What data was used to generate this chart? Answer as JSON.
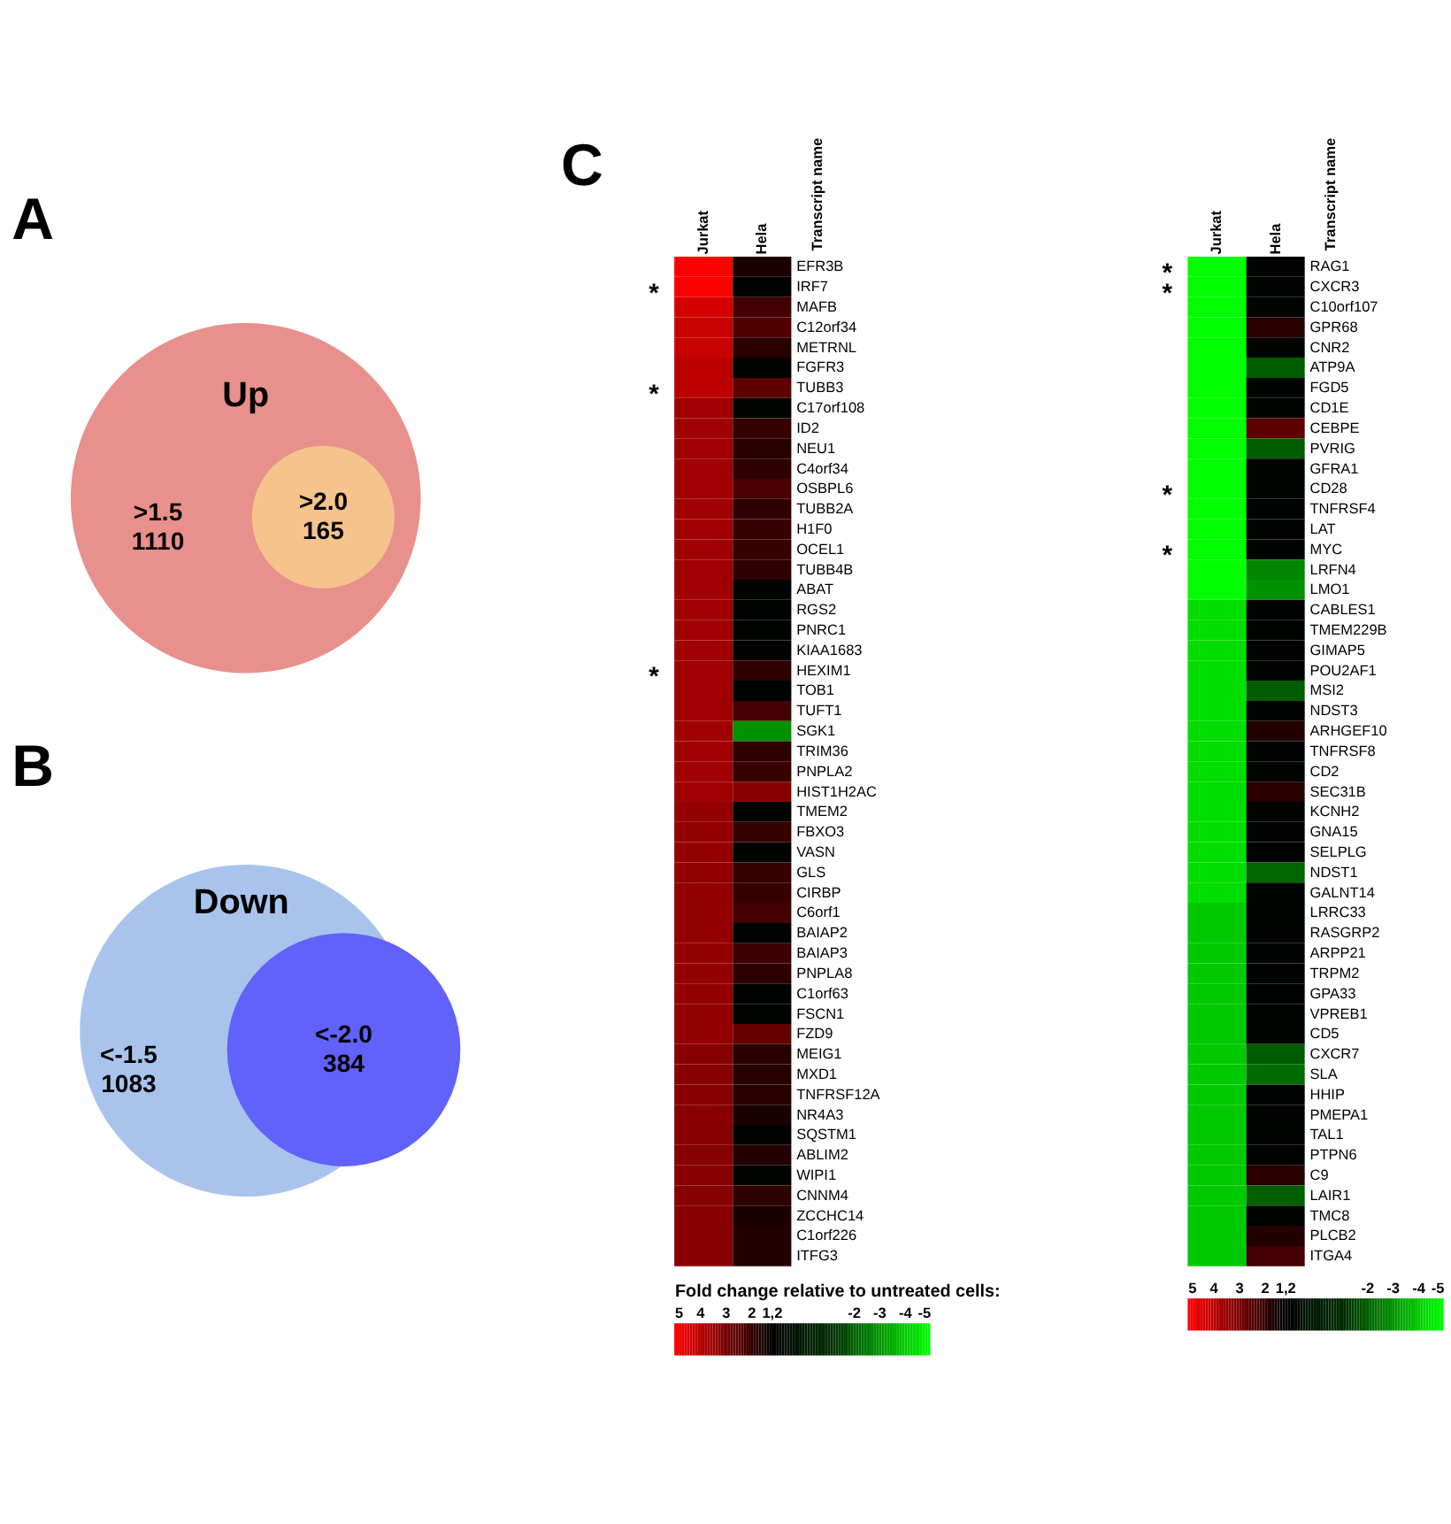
{
  "chart_data": [
    {
      "type": "other",
      "title": "A",
      "annotations": [
        "Up"
      ],
      "categories": [
        ">1.5",
        ">2.0"
      ],
      "values": [
        1110,
        165
      ],
      "colors": [
        "#e8908c",
        "#f6c38c"
      ],
      "data_labels": true
    },
    {
      "type": "other",
      "title": "B",
      "annotations": [
        "Down"
      ],
      "categories": [
        "<-1.5",
        "<-2.0"
      ],
      "values": [
        1083,
        384
      ],
      "colors": [
        "#a9c4ec",
        "#6161fb"
      ],
      "data_labels": true
    },
    {
      "type": "heatmap",
      "title": "C",
      "categories": [
        "Jurkat",
        "Hela"
      ],
      "y2label": "Transcript name",
      "clabel": "Fold change relative to untreated cells:",
      "clim": [
        5,
        -5
      ],
      "cticks": [
        5,
        4,
        3,
        2,
        {
          "value": 1.2,
          "label": "1,2"
        },
        -2,
        -3,
        -4,
        -5
      ],
      "y_categories": [
        null,
        "*",
        null,
        null,
        null,
        null,
        "*",
        null,
        null,
        null,
        null,
        null,
        null,
        null,
        null,
        null,
        null,
        null,
        null,
        null,
        "*",
        null,
        null,
        null,
        null,
        null,
        null,
        null,
        null,
        null,
        null,
        null,
        null,
        null,
        null,
        null,
        null,
        null,
        null,
        null,
        null,
        null,
        null,
        null,
        null,
        null,
        null,
        null,
        null,
        null
      ],
      "y2_categories": [
        "EFR3B",
        "IRF7",
        "MAFB",
        "C12orf34",
        "METRNL",
        "FGFR3",
        "TUBB3",
        "C17orf108",
        "ID2",
        "NEU1",
        "C4orf34",
        "OSBPL6",
        "TUBB2A",
        "H1F0",
        "OCEL1",
        "TUBB4B",
        "ABAT",
        "RGS2",
        "PNRC1",
        "KIAA1683",
        "HEXIM1",
        "TOB1",
        "TUFT1",
        "SGK1",
        "TRIM36",
        "PNPLA2",
        "HIST1H2AC",
        "TMEM2",
        "FBXO3",
        "VASN",
        "GLS",
        "CIRBP",
        "C6orf1",
        "BAIAP2",
        "BAIAP3",
        "PNPLA8",
        "C1orf63",
        "FSCN1",
        "FZD9",
        "MEIG1",
        "MXD1",
        "TNFRSF12A",
        "NR4A3",
        "SQSTM1",
        "ABLIM2",
        "WIPI1",
        "CNNM4",
        "ZCCHC14",
        "C1orf226",
        "ITFG3"
      ],
      "cells": [
        [
          5,
          1.6
        ],
        [
          5,
          1
        ],
        [
          4.4,
          2.2
        ],
        [
          4.2,
          2.4
        ],
        [
          4.2,
          1.8
        ],
        [
          4,
          1
        ],
        [
          4,
          2.6
        ],
        [
          3.6,
          1
        ],
        [
          3.6,
          2
        ],
        [
          3.6,
          1.8
        ],
        [
          3.6,
          1.9
        ],
        [
          3.6,
          2.3
        ],
        [
          3.6,
          1.9
        ],
        [
          3.6,
          2
        ],
        [
          3.6,
          2
        ],
        [
          3.6,
          1.9
        ],
        [
          3.6,
          1
        ],
        [
          3.6,
          1
        ],
        [
          3.6,
          1
        ],
        [
          3.6,
          1
        ],
        [
          3.6,
          1.9
        ],
        [
          3.6,
          1
        ],
        [
          3.6,
          2.2
        ],
        [
          3.6,
          -3
        ],
        [
          3.6,
          1.9
        ],
        [
          3.6,
          2
        ],
        [
          3.6,
          3.2
        ],
        [
          3.4,
          1
        ],
        [
          3.4,
          2
        ],
        [
          3.4,
          1
        ],
        [
          3.4,
          2
        ],
        [
          3.4,
          2
        ],
        [
          3.4,
          2.2
        ],
        [
          3.4,
          1
        ],
        [
          3.4,
          2.1
        ],
        [
          3.4,
          1.9
        ],
        [
          3.4,
          1
        ],
        [
          3.4,
          1
        ],
        [
          3.4,
          2.7
        ],
        [
          3.2,
          1.8
        ],
        [
          3.2,
          1.8
        ],
        [
          3.2,
          1.8
        ],
        [
          3.2,
          1.6
        ],
        [
          3.2,
          1
        ],
        [
          3.2,
          1.7
        ],
        [
          3.2,
          1
        ],
        [
          3.2,
          1.9
        ],
        [
          3.2,
          1.6
        ],
        [
          3.2,
          1.7
        ],
        [
          3.2,
          1.7
        ]
      ]
    },
    {
      "type": "heatmap",
      "categories": [
        "Jurkat",
        "Hela"
      ],
      "y2label": "Transcript name",
      "clim": [
        5,
        -5
      ],
      "cticks": [
        5,
        4,
        3,
        2,
        {
          "value": 1.2,
          "label": "1,2"
        },
        -2,
        -3,
        -4,
        -5
      ],
      "y_categories": [
        "*",
        "*",
        null,
        null,
        null,
        null,
        null,
        null,
        null,
        null,
        null,
        "*",
        null,
        null,
        "*",
        null,
        null,
        null,
        null,
        null,
        null,
        null,
        null,
        null,
        null,
        null,
        null,
        null,
        null,
        null,
        null,
        null,
        null,
        null,
        null,
        null,
        null,
        null,
        null,
        null,
        null,
        null,
        null,
        null,
        null,
        null,
        null,
        null,
        null,
        null
      ],
      "y2_categories": [
        "RAG1",
        "CXCR3",
        "C10orf107",
        "GPR68",
        "CNR2",
        "ATP9A",
        "FGD5",
        "CD1E",
        "CEBPE",
        "PVRIG",
        "GFRA1",
        "CD28",
        "TNFRSF4",
        "LAT",
        "MYC",
        "LRFN4",
        "LMO1",
        "CABLES1",
        "TMEM229B",
        "GIMAP5",
        "POU2AF1",
        "MSI2",
        "NDST3",
        "ARHGEF10",
        "TNFRSF8",
        "CD2",
        "SEC31B",
        "KCNH2",
        "GNA15",
        "SELPLG",
        "NDST1",
        "GALNT14",
        "LRRC33",
        "RASGRP2",
        "ARPP21",
        "TRPM2",
        "GPA33",
        "VPREB1",
        "CD5",
        "CXCR7",
        "SLA",
        "HHIP",
        "PMEPA1",
        "TAL1",
        "PTPN6",
        "C9",
        "LAIR1",
        "TMC8",
        "PLCB2",
        "ITGA4"
      ],
      "cells": [
        [
          -5,
          1
        ],
        [
          -5,
          1
        ],
        [
          -5,
          1
        ],
        [
          -5,
          1.8
        ],
        [
          -5,
          1
        ],
        [
          -5,
          -2
        ],
        [
          -5,
          1
        ],
        [
          -5,
          1
        ],
        [
          -5,
          2.6
        ],
        [
          -5,
          -2
        ],
        [
          -5,
          1
        ],
        [
          -5,
          1
        ],
        [
          -5,
          1
        ],
        [
          -5,
          1
        ],
        [
          -5,
          1
        ],
        [
          -5,
          -2.8
        ],
        [
          -5,
          -3
        ],
        [
          -4.4,
          1
        ],
        [
          -4.4,
          1
        ],
        [
          -4.4,
          1
        ],
        [
          -4.4,
          1
        ],
        [
          -4.4,
          -2
        ],
        [
          -4.4,
          1
        ],
        [
          -4.4,
          1.7
        ],
        [
          -4.4,
          1
        ],
        [
          -4.4,
          1
        ],
        [
          -4.4,
          1.8
        ],
        [
          -4.4,
          1
        ],
        [
          -4.4,
          1
        ],
        [
          -4.4,
          1
        ],
        [
          -4.4,
          -2.2
        ],
        [
          -4.4,
          1
        ],
        [
          -4,
          1
        ],
        [
          -4,
          1
        ],
        [
          -4,
          1
        ],
        [
          -4,
          1
        ],
        [
          -4,
          1
        ],
        [
          -4,
          1
        ],
        [
          -4,
          1
        ],
        [
          -4,
          -2
        ],
        [
          -4,
          -2.3
        ],
        [
          -4,
          1
        ],
        [
          -4,
          1
        ],
        [
          -4,
          1
        ],
        [
          -4,
          1
        ],
        [
          -4,
          1.8
        ],
        [
          -4,
          -2.1
        ],
        [
          -4,
          1
        ],
        [
          -4,
          1.7
        ],
        [
          -4,
          2.2
        ]
      ]
    }
  ]
}
